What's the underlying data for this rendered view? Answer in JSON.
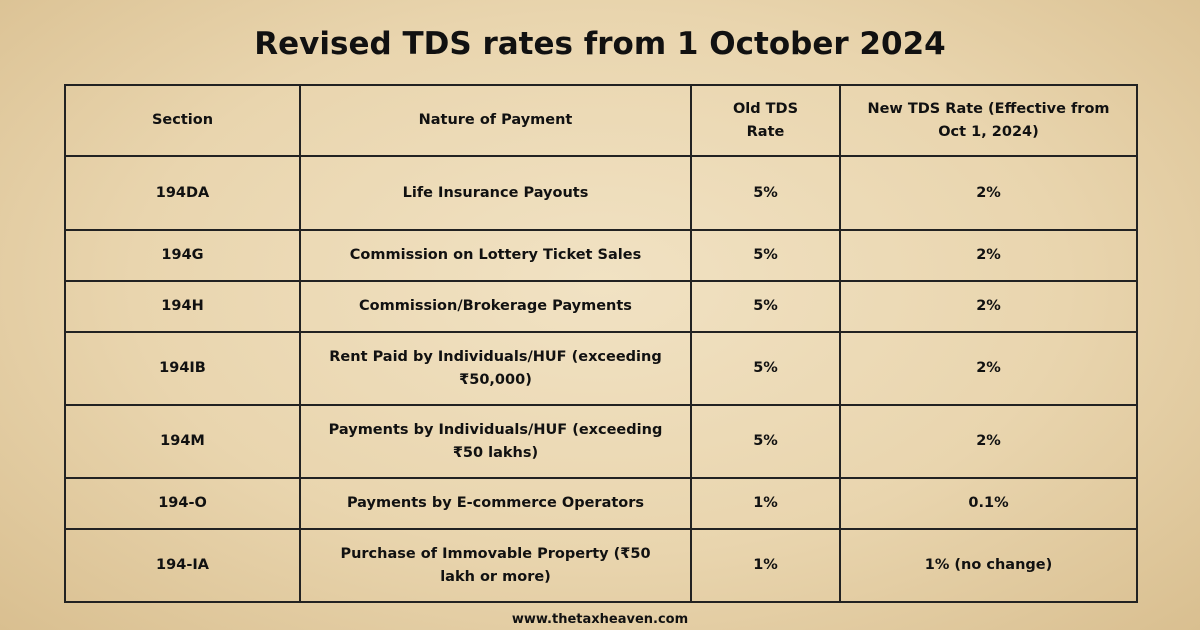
{
  "title": "Revised TDS rates from 1 October 2024",
  "table": {
    "header": [
      "Section",
      "Nature of Payment",
      "Old TDS Rate",
      "New TDS Rate (Effective from Oct 1, 2024)"
    ],
    "rows": [
      [
        "194DA",
        "Life Insurance Payouts",
        "5%",
        "2%"
      ],
      [
        "194G",
        "Commission on Lottery Ticket Sales",
        "5%",
        "2%"
      ],
      [
        "194H",
        "Commission/Brokerage Payments",
        "5%",
        "2%"
      ],
      [
        "194IB",
        "Rent Paid by Individuals/HUF (exceeding ₹50,000)",
        "5%",
        "2%"
      ],
      [
        "194M",
        "Payments by Individuals/HUF (exceeding ₹50 lakhs)",
        "5%",
        "2%"
      ],
      [
        "194-O",
        "Payments by E-commerce Operators",
        "1%",
        "0.1%"
      ],
      [
        "194-IA",
        "Purchase of Immovable Property (₹50 lakh or more)",
        "1%",
        "1% (no change)"
      ]
    ]
  },
  "footer": "www.thetaxheaven.com"
}
